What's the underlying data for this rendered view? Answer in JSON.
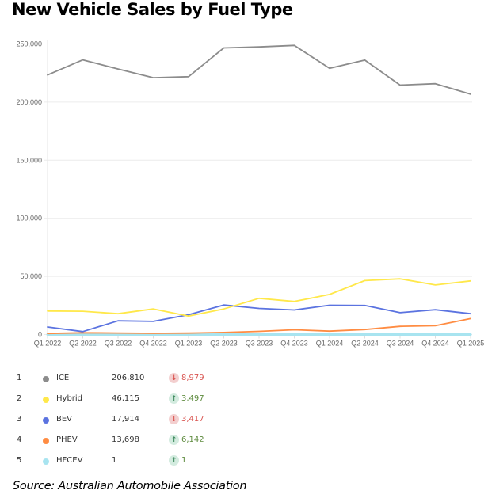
{
  "title": "New Vehicle Sales by Fuel Type",
  "source": "Source: Australian Automobile Association",
  "chart_data": {
    "type": "line",
    "title": "New Vehicle Sales by Fuel Type",
    "xlabel": "",
    "ylabel": "",
    "ylim": [
      0,
      250000
    ],
    "yticks": [
      0,
      50000,
      100000,
      150000,
      200000,
      250000
    ],
    "ytick_labels": [
      "0",
      "50,000",
      "100,000",
      "150,000",
      "200,000",
      "250,000"
    ],
    "grid": true,
    "categories": [
      "Q1 2022",
      "Q2 2022",
      "Q3 2022",
      "Q4 2022",
      "Q1 2023",
      "Q2 2023",
      "Q3 2023",
      "Q4 2023",
      "Q1 2024",
      "Q2 2024",
      "Q3 2024",
      "Q4 2024",
      "Q1 2025"
    ],
    "series": [
      {
        "name": "ICE",
        "color": "#8c8c8c",
        "values": [
          223300,
          236300,
          228500,
          221000,
          221900,
          246600,
          247500,
          248800,
          229000,
          236100,
          214600,
          215789,
          206810
        ]
      },
      {
        "name": "Hybrid",
        "color": "#ffe84a",
        "values": [
          20200,
          20000,
          17900,
          22000,
          15900,
          22000,
          31100,
          28400,
          34500,
          46400,
          47900,
          42618,
          46115
        ]
      },
      {
        "name": "BEV",
        "color": "#5b73e0",
        "values": [
          6500,
          2500,
          11800,
          11300,
          17000,
          25400,
          22500,
          21100,
          25200,
          25000,
          18800,
          21331,
          17914
        ]
      },
      {
        "name": "PHEV",
        "color": "#ff8c42",
        "values": [
          900,
          1500,
          1300,
          1000,
          1200,
          1800,
          2700,
          4100,
          2900,
          4300,
          7000,
          7556,
          13698
        ]
      },
      {
        "name": "HFCEV",
        "color": "#a8e4f0",
        "values": [
          0,
          0,
          0,
          0,
          0,
          0,
          0,
          0,
          0,
          0,
          0,
          0,
          1
        ]
      }
    ]
  },
  "legend": {
    "rows": [
      {
        "rank": "1",
        "name": "ICE",
        "color": "#8c8c8c",
        "value": "206,810",
        "direction": "down",
        "arrow": "↓",
        "change": "8,979"
      },
      {
        "rank": "2",
        "name": "Hybrid",
        "color": "#ffe84a",
        "value": "46,115",
        "direction": "up",
        "arrow": "↑",
        "change": "3,497"
      },
      {
        "rank": "3",
        "name": "BEV",
        "color": "#5b73e0",
        "value": "17,914",
        "direction": "down",
        "arrow": "↓",
        "change": "3,417"
      },
      {
        "rank": "4",
        "name": "PHEV",
        "color": "#ff8c42",
        "value": "13,698",
        "direction": "up",
        "arrow": "↑",
        "change": "6,142"
      },
      {
        "rank": "5",
        "name": "HFCEV",
        "color": "#a8e4f0",
        "value": "1",
        "direction": "up",
        "arrow": "↑",
        "change": "1"
      }
    ]
  }
}
